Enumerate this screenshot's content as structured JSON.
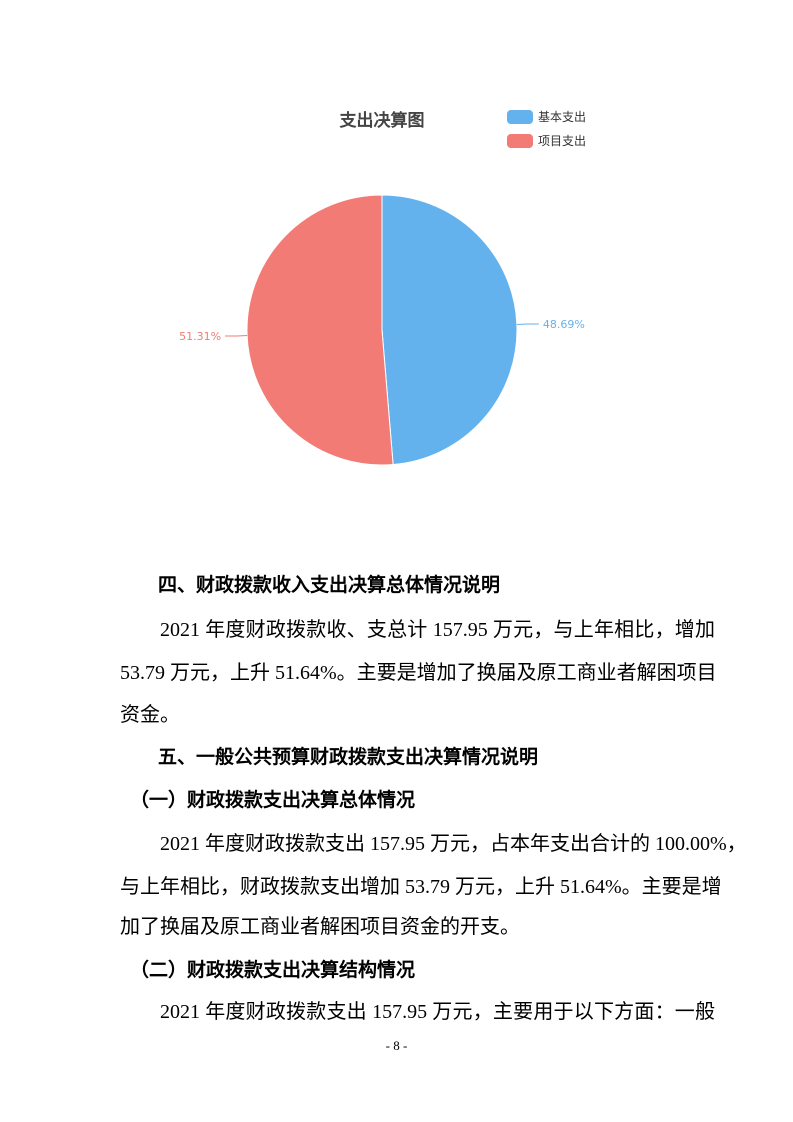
{
  "chart_data": {
    "type": "pie",
    "title": "支出决算图",
    "legend_position": "top-right",
    "categories": [
      "基本支出",
      "项目支出"
    ],
    "values": [
      48.69,
      51.31
    ],
    "labels": [
      "48.69%",
      "51.31%"
    ],
    "colors": [
      "#63b2ee",
      "#f27b76"
    ]
  },
  "body": {
    "h4": "四、财政拨款收入支出决算总体情况说明",
    "p1": [
      "2021 年度财政拨款收、支总计 157.95 万元，与上年相比，增加",
      "53.79 万元，上升 51.64%。主要是增加了换届及原工商业者解困项目",
      "资金。"
    ],
    "h5": "五、一般公共预算财政拨款支出决算情况说明",
    "h5_1": "（一）财政拨款支出决算总体情况",
    "p2": [
      "2021 年度财政拨款支出 157.95 万元，占本年支出合计的 100.00%，",
      "与上年相比，财政拨款支出增加 53.79 万元，上升 51.64%。主要是增",
      "加了换届及原工商业者解困项目资金的开支。"
    ],
    "h5_2": "（二）财政拨款支出决算结构情况",
    "p3": [
      "2021 年度财政拨款支出 157.95 万元，主要用于以下方面：一般"
    ]
  },
  "page_number": "- 8 -"
}
